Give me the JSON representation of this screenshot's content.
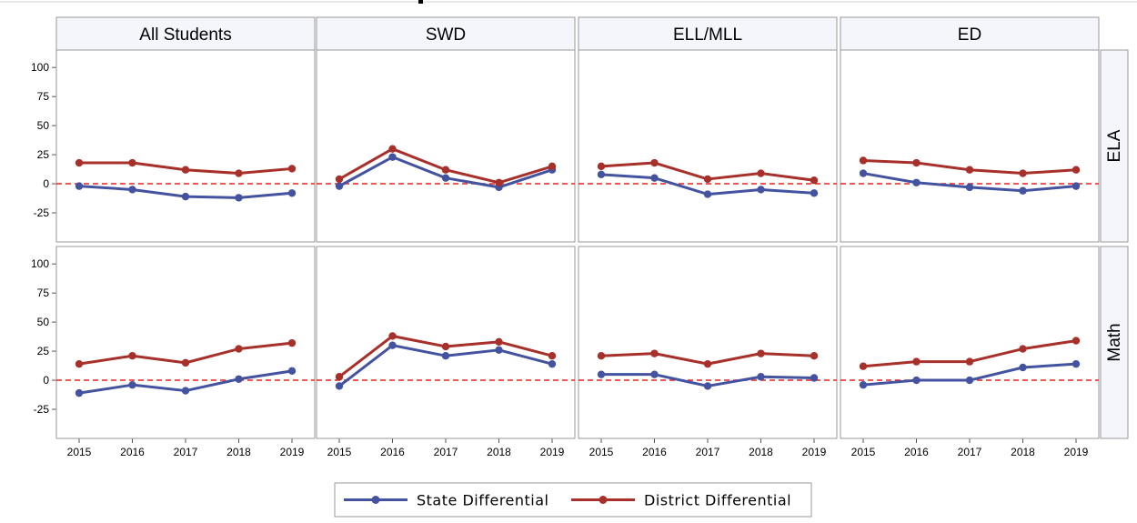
{
  "chart_data": {
    "type": "line",
    "layout": "panel-grid",
    "columns": [
      "All Students",
      "SWD",
      "ELL/MLL",
      "ED"
    ],
    "rows": [
      "ELA",
      "Math"
    ],
    "x": [
      2015,
      2016,
      2017,
      2018,
      2019
    ],
    "ylim": [
      -50,
      115
    ],
    "yticks": [
      -25,
      0,
      25,
      50,
      75,
      100
    ],
    "reference_line": {
      "y": 0,
      "style": "dashed",
      "color": "#e8201f"
    },
    "series_names": [
      "State Differential",
      "District Differential"
    ],
    "colors": {
      "State Differential": "#4453a0",
      "District Differential": "#a8302a"
    },
    "legend_position": "bottom-center",
    "panels": [
      {
        "column": "All Students",
        "row": "ELA",
        "series": [
          {
            "name": "State Differential",
            "values": [
              -2,
              -5,
              -11,
              -12,
              -8
            ]
          },
          {
            "name": "District Differential",
            "values": [
              18,
              18,
              12,
              9,
              13
            ]
          }
        ]
      },
      {
        "column": "SWD",
        "row": "ELA",
        "series": [
          {
            "name": "State Differential",
            "values": [
              -2,
              23,
              5,
              -3,
              12
            ]
          },
          {
            "name": "District Differential",
            "values": [
              4,
              30,
              12,
              1,
              15
            ]
          }
        ]
      },
      {
        "column": "ELL/MLL",
        "row": "ELA",
        "series": [
          {
            "name": "State Differential",
            "values": [
              8,
              5,
              -9,
              -5,
              -8
            ]
          },
          {
            "name": "District Differential",
            "values": [
              15,
              18,
              4,
              9,
              3
            ]
          }
        ]
      },
      {
        "column": "ED",
        "row": "ELA",
        "series": [
          {
            "name": "State Differential",
            "values": [
              9,
              1,
              -3,
              -6,
              -2
            ]
          },
          {
            "name": "District Differential",
            "values": [
              20,
              18,
              12,
              9,
              12
            ]
          }
        ]
      },
      {
        "column": "All Students",
        "row": "Math",
        "series": [
          {
            "name": "State Differential",
            "values": [
              -11,
              -4,
              -9,
              1,
              8
            ]
          },
          {
            "name": "District Differential",
            "values": [
              14,
              21,
              15,
              27,
              32
            ]
          }
        ]
      },
      {
        "column": "SWD",
        "row": "Math",
        "series": [
          {
            "name": "State Differential",
            "values": [
              -5,
              30,
              21,
              26,
              14
            ]
          },
          {
            "name": "District Differential",
            "values": [
              3,
              38,
              29,
              33,
              21
            ]
          }
        ]
      },
      {
        "column": "ELL/MLL",
        "row": "Math",
        "series": [
          {
            "name": "State Differential",
            "values": [
              5,
              5,
              -5,
              3,
              2
            ]
          },
          {
            "name": "District Differential",
            "values": [
              21,
              23,
              14,
              23,
              21
            ]
          }
        ]
      },
      {
        "column": "ED",
        "row": "Math",
        "series": [
          {
            "name": "State Differential",
            "values": [
              -4,
              0,
              0,
              11,
              14
            ]
          },
          {
            "name": "District Differential",
            "values": [
              12,
              16,
              16,
              27,
              34
            ]
          }
        ]
      }
    ]
  }
}
